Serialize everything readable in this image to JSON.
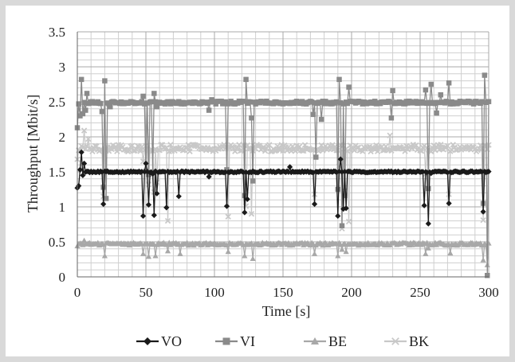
{
  "chart_data": {
    "type": "line",
    "title": "",
    "xlabel": "Time [s]",
    "ylabel": "Throughput [Mbit/s]",
    "xlim": [
      0,
      300
    ],
    "ylim": [
      0,
      3.5
    ],
    "x_ticks": [
      0,
      50,
      100,
      150,
      200,
      250,
      300
    ],
    "y_ticks": [
      0,
      0.5,
      1,
      1.5,
      2,
      2.5,
      3,
      3.5
    ],
    "x_tick_labels": [
      "0",
      "50",
      "100",
      "150",
      "200",
      "250",
      "300"
    ],
    "y_tick_labels": [
      "0",
      "0.5",
      "1",
      "1.5",
      "2",
      "2.5",
      "3",
      "3.5"
    ],
    "grid": true,
    "legend_position": "bottom",
    "sample_interval": 1,
    "series": [
      {
        "name": "VO",
        "color": "#1a1a1a",
        "marker": "diamond",
        "baseline": 1.5,
        "jitter": 0.01,
        "start": [
          [
            0,
            1.27
          ],
          [
            1,
            1.3
          ],
          [
            2,
            1.53
          ],
          [
            3,
            1.78
          ],
          [
            4,
            1.45
          ],
          [
            5,
            1.62
          ]
        ],
        "events": [
          [
            19,
            1.04
          ],
          [
            48,
            0.87
          ],
          [
            50,
            1.62
          ],
          [
            52,
            1.03
          ],
          [
            55,
            1.47
          ],
          [
            56,
            0.88
          ],
          [
            58,
            1.19
          ],
          [
            65,
            0.99
          ],
          [
            74,
            1.15
          ],
          [
            96,
            1.43
          ],
          [
            109,
            1.01
          ],
          [
            122,
            0.92
          ],
          [
            124,
            1.11
          ],
          [
            155,
            1.57
          ],
          [
            173,
            1.04
          ],
          [
            190,
            0.87
          ],
          [
            192,
            1.68
          ],
          [
            194,
            0.97
          ],
          [
            196,
            0.98
          ],
          [
            253,
            1.02
          ],
          [
            256,
            0.76
          ],
          [
            258,
            1.48
          ],
          [
            271,
            1.05
          ],
          [
            296,
            0.93
          ]
        ]
      },
      {
        "name": "VI",
        "color": "#8a8a8a",
        "marker": "square",
        "baseline": 2.49,
        "jitter": 0.02,
        "start": [
          [
            0,
            2.13
          ],
          [
            2,
            2.3
          ],
          [
            3,
            2.82
          ],
          [
            4,
            2.33
          ],
          [
            6,
            2.38
          ],
          [
            7,
            2.62
          ],
          [
            10,
            2.5
          ]
        ],
        "events": [
          [
            18,
            2.36
          ],
          [
            19,
            1.28
          ],
          [
            20,
            2.8
          ],
          [
            21,
            1.12
          ],
          [
            24,
            2.43
          ],
          [
            48,
            2.58
          ],
          [
            50,
            1.51
          ],
          [
            52,
            1.46
          ],
          [
            55,
            1.5
          ],
          [
            56,
            2.62
          ],
          [
            58,
            2.43
          ],
          [
            96,
            2.38
          ],
          [
            98,
            2.53
          ],
          [
            109,
            1.53
          ],
          [
            122,
            1.16
          ],
          [
            123,
            2.82
          ],
          [
            127,
            2.27
          ],
          [
            128,
            1.37
          ],
          [
            172,
            2.32
          ],
          [
            174,
            1.71
          ],
          [
            178,
            2.25
          ],
          [
            190,
            1.25
          ],
          [
            191,
            2.82
          ],
          [
            193,
            0.73
          ],
          [
            195,
            1.16
          ],
          [
            198,
            2.71
          ],
          [
            229,
            2.27
          ],
          [
            230,
            2.66
          ],
          [
            254,
            2.67
          ],
          [
            256,
            1.26
          ],
          [
            258,
            2.75
          ],
          [
            262,
            2.34
          ],
          [
            265,
            2.6
          ],
          [
            271,
            2.77
          ],
          [
            296,
            1.05
          ],
          [
            297,
            2.88
          ],
          [
            299,
            0.02
          ]
        ]
      },
      {
        "name": "BE",
        "color": "#a8a8a8",
        "marker": "triangle",
        "baseline": 0.47,
        "jitter": 0.02,
        "start": [
          [
            0,
            0.44
          ],
          [
            2,
            0.48
          ],
          [
            5,
            0.52
          ]
        ],
        "events": [
          [
            20,
            0.3
          ],
          [
            48,
            0.33
          ],
          [
            52,
            0.29
          ],
          [
            57,
            0.3
          ],
          [
            66,
            0.37
          ],
          [
            75,
            0.33
          ],
          [
            110,
            0.36
          ],
          [
            122,
            0.3
          ],
          [
            128,
            0.26
          ],
          [
            173,
            0.33
          ],
          [
            190,
            0.3
          ],
          [
            193,
            0.39
          ],
          [
            196,
            0.36
          ],
          [
            254,
            0.33
          ],
          [
            256,
            0.41
          ],
          [
            272,
            0.34
          ],
          [
            296,
            0.24
          ],
          [
            299,
            0.17
          ]
        ]
      },
      {
        "name": "BK",
        "color": "#c8c8c8",
        "marker": "cross",
        "baseline": 1.84,
        "jitter": 0.05,
        "start": [
          [
            0,
            1.68
          ],
          [
            2,
            1.8
          ],
          [
            5,
            2.09
          ],
          [
            8,
            1.97
          ]
        ],
        "events": [
          [
            19,
            1.15
          ],
          [
            48,
            1.65
          ],
          [
            52,
            1.32
          ],
          [
            56,
            1.21
          ],
          [
            58,
            1.35
          ],
          [
            66,
            0.8
          ],
          [
            110,
            0.86
          ],
          [
            123,
            1.01
          ],
          [
            127,
            0.9
          ],
          [
            173,
            1.18
          ],
          [
            191,
            1.58
          ],
          [
            193,
            0.69
          ],
          [
            195,
            1.23
          ],
          [
            198,
            0.79
          ],
          [
            228,
            2.02
          ],
          [
            254,
            1.47
          ],
          [
            258,
            1.79
          ],
          [
            271,
            1.18
          ],
          [
            296,
            0.81
          ]
        ]
      }
    ]
  }
}
